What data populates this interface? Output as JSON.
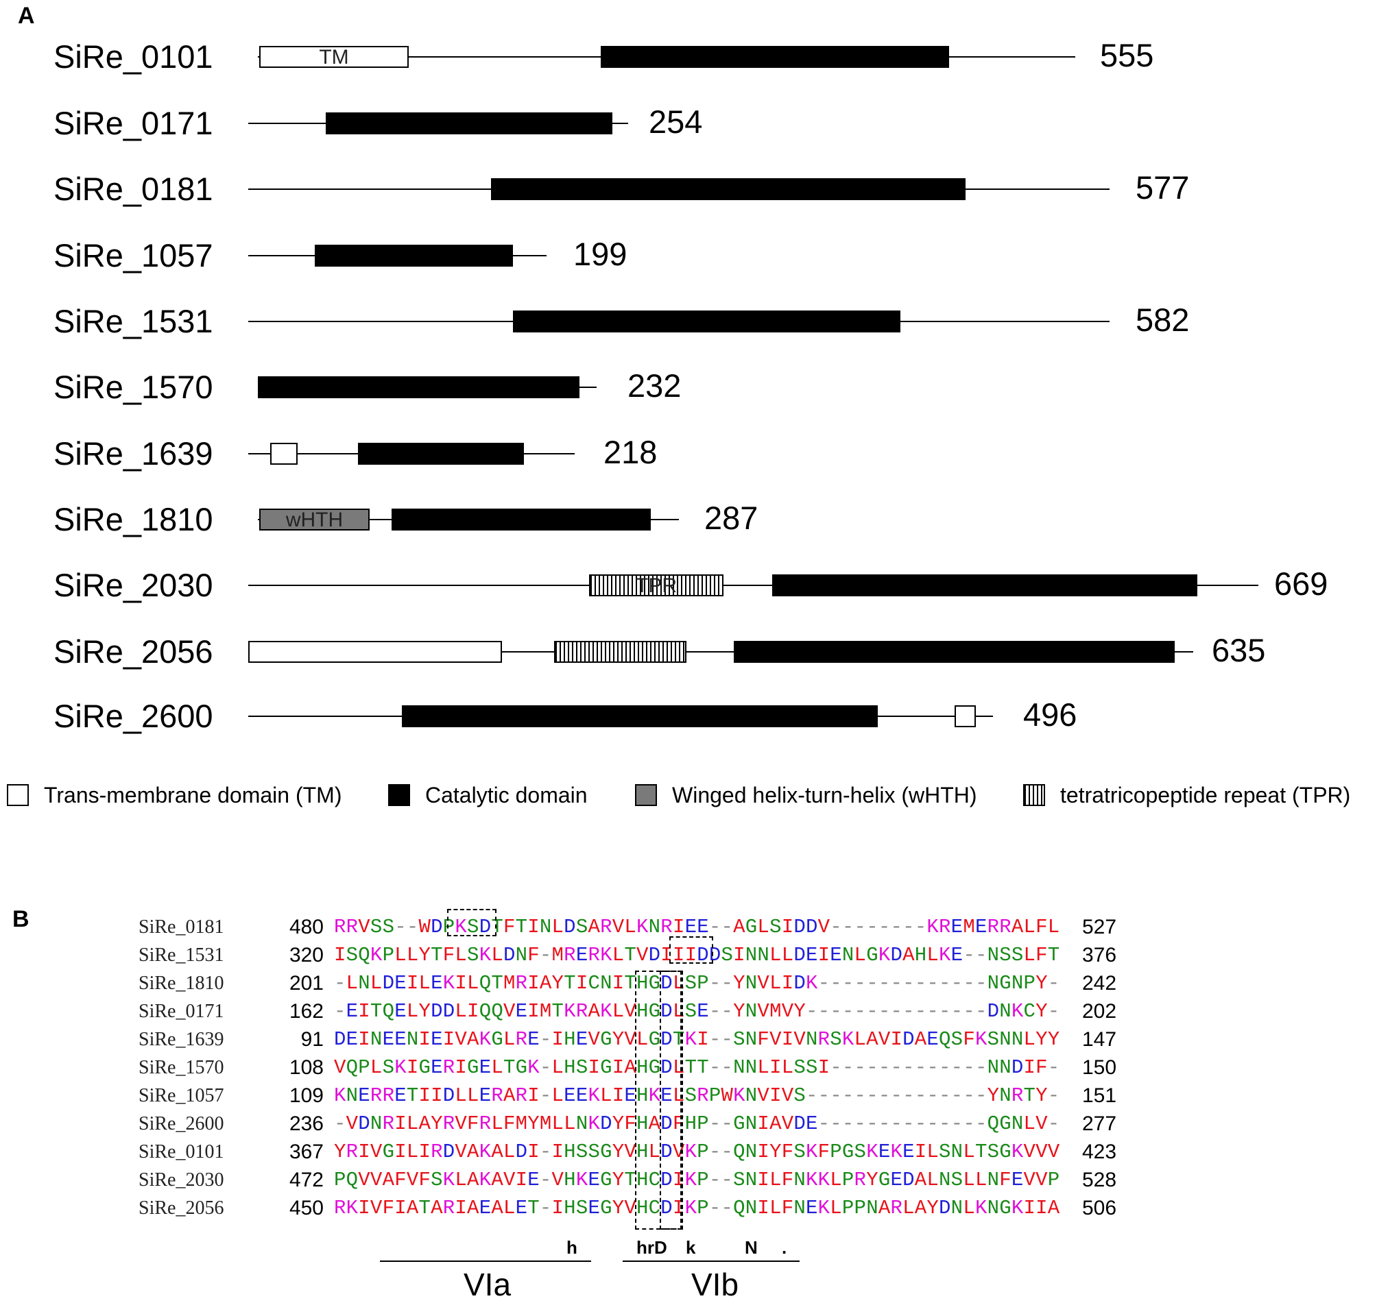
{
  "panel_a": {
    "label": "A",
    "proteins": [
      {
        "name": "SiRe_0101",
        "length": "555",
        "domains": [
          {
            "type": "tm",
            "label": "TM"
          },
          {
            "type": "catalytic",
            "label": ""
          }
        ]
      },
      {
        "name": "SiRe_0171",
        "length": "254",
        "domains": [
          {
            "type": "catalytic",
            "label": ""
          }
        ]
      },
      {
        "name": "SiRe_0181",
        "length": "577",
        "domains": [
          {
            "type": "catalytic",
            "label": ""
          }
        ]
      },
      {
        "name": "SiRe_1057",
        "length": "199",
        "domains": [
          {
            "type": "catalytic",
            "label": ""
          }
        ]
      },
      {
        "name": "SiRe_1531",
        "length": "582",
        "domains": [
          {
            "type": "catalytic",
            "label": ""
          }
        ]
      },
      {
        "name": "SiRe_1570",
        "length": "232",
        "domains": [
          {
            "type": "catalytic",
            "label": ""
          }
        ]
      },
      {
        "name": "SiRe_1639",
        "length": "218",
        "domains": [
          {
            "type": "tm",
            "label": ""
          },
          {
            "type": "catalytic",
            "label": ""
          }
        ]
      },
      {
        "name": "SiRe_1810",
        "length": "287",
        "domains": [
          {
            "type": "whth",
            "label": "wHTH"
          },
          {
            "type": "catalytic",
            "label": ""
          }
        ]
      },
      {
        "name": "SiRe_2030",
        "length": "669",
        "domains": [
          {
            "type": "tpr",
            "label": "TPR"
          },
          {
            "type": "catalytic",
            "label": ""
          }
        ]
      },
      {
        "name": "SiRe_2056",
        "length": "635",
        "domains": [
          {
            "type": "tm",
            "label": ""
          },
          {
            "type": "tpr",
            "label": ""
          },
          {
            "type": "catalytic",
            "label": ""
          }
        ]
      },
      {
        "name": "SiRe_2600",
        "length": "496",
        "domains": [
          {
            "type": "catalytic",
            "label": ""
          },
          {
            "type": "tm",
            "label": ""
          }
        ]
      }
    ],
    "legend": [
      {
        "type": "tm",
        "label": "Trans-membrane domain (TM)"
      },
      {
        "type": "catalytic",
        "label": "Catalytic domain"
      },
      {
        "type": "whth",
        "label": "Winged helix-turn-helix (wHTH)"
      },
      {
        "type": "tpr",
        "label": "tetratricopeptide repeat (TPR)"
      }
    ]
  },
  "panel_b": {
    "label": "B",
    "alignment": [
      {
        "name": "SiRe_0181",
        "start": "480",
        "seq": "RRVSS--WDPKSDTFTINLDSARVLKNRIEE--AGLSIDDV--------KREMERRALFL",
        "end": "527"
      },
      {
        "name": "SiRe_1531",
        "start": "320",
        "seq": "ISQKPLLYTFLSKLDNF-MRERKLTVDIIIDDSINNLLDEIENLGKDAHLKE--NSSLFT",
        "end": "376"
      },
      {
        "name": "SiRe_1810",
        "start": "201",
        "seq": "-LNLDEILEKILQTMRIAYTICNITHGDLSP--YNVLIDK--------------NGNPY-",
        "end": "242"
      },
      {
        "name": "SiRe_0171",
        "start": "162",
        "seq": "-EITQELYDDLIQQVEIMTKRAKLVHGDLSE--YNVMVY---------------DNKCY-",
        "end": "202"
      },
      {
        "name": "SiRe_1639",
        "start": "91",
        "seq": "DEINEENIEIVAKGLRE-IHEVGYVLGDTKI--SNFVIVNRSKLAVIDAEQSFKSNNLYY",
        "end": "147"
      },
      {
        "name": "SiRe_1570",
        "start": "108",
        "seq": "VQPLSKIGERIGELTGK-LHSIGIAHGDLTT--NNLILSSI-------------NNDIF-",
        "end": "150"
      },
      {
        "name": "SiRe_1057",
        "start": "109",
        "seq": "KNERRETIIDLLERARI-LEEKLIEHKELSRPWKNVIVS---------------YNRTY-",
        "end": "151"
      },
      {
        "name": "SiRe_2600",
        "start": "236",
        "seq": "-VDNRILAYRVFRLFMYMLLNKDYFHADFHP--GNIAVDE--------------QGNLV-",
        "end": "277"
      },
      {
        "name": "SiRe_0101",
        "start": "367",
        "seq": "YRIVGILIRDVAKALDI-IHSSGYVHLDVKP--QNIYFSKFPGSKEKEILSNLTSGKVVV",
        "end": "423"
      },
      {
        "name": "SiRe_2030",
        "start": "472",
        "seq": "PQVVAFVFSKLAKAVIE-VHKEGYTHCDIKP--SNILFNKKLPRYGEDALNSLLNFEVVP",
        "end": "528"
      },
      {
        "name": "SiRe_2056",
        "start": "450",
        "seq": "RKIVFIATARIAEALET-IHSEGYVHCDIKP--QNILFNEKLPPNARLAYDNLKNGKIIA",
        "end": "506"
      }
    ],
    "consensus": [
      "h",
      "hrD",
      "k",
      "N",
      "."
    ],
    "motifs": [
      "VIa",
      "VIb"
    ]
  }
}
